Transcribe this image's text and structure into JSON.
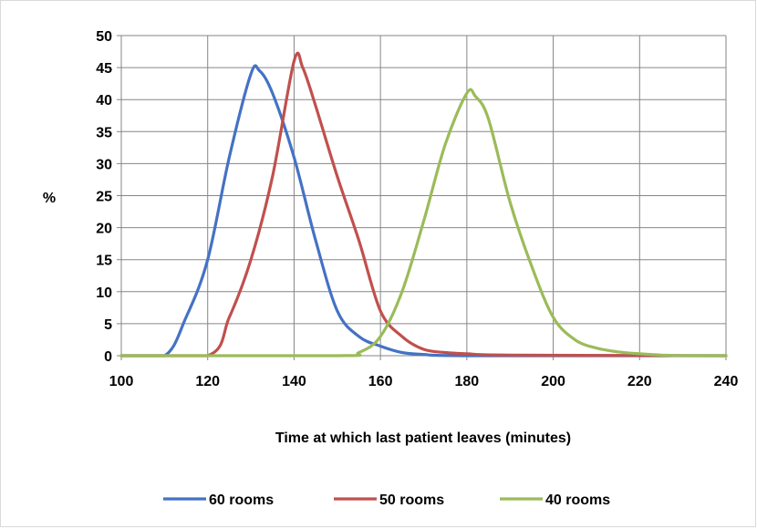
{
  "chart_data": {
    "type": "line",
    "title": "",
    "xlabel": "Time at which last patient leaves (minutes)",
    "ylabel": "%",
    "xlim": [
      100,
      240
    ],
    "ylim": [
      0,
      50
    ],
    "x_ticks": [
      "100",
      "120",
      "140",
      "160",
      "180",
      "200",
      "220",
      "240"
    ],
    "y_ticks": [
      "0",
      "5",
      "10",
      "15",
      "20",
      "25",
      "30",
      "35",
      "40",
      "45",
      "50"
    ],
    "grid": true,
    "legend_position": "bottom",
    "series": [
      {
        "name": "60 rooms",
        "color": "#4472C4",
        "points": [
          [
            100,
            0
          ],
          [
            110,
            0
          ],
          [
            115,
            6
          ],
          [
            120,
            15
          ],
          [
            125,
            31
          ],
          [
            130,
            44
          ],
          [
            132,
            44.5
          ],
          [
            135,
            41
          ],
          [
            140,
            31
          ],
          [
            145,
            18
          ],
          [
            150,
            7
          ],
          [
            155,
            3
          ],
          [
            160,
            1.5
          ],
          [
            165,
            0.5
          ],
          [
            170,
            0.2
          ],
          [
            180,
            0
          ],
          [
            240,
            0
          ]
        ]
      },
      {
        "name": "50 rooms",
        "color": "#C0504D",
        "points": [
          [
            100,
            0
          ],
          [
            120,
            0
          ],
          [
            125,
            6
          ],
          [
            130,
            15
          ],
          [
            135,
            28
          ],
          [
            140,
            46
          ],
          [
            142,
            45
          ],
          [
            145,
            39
          ],
          [
            150,
            28
          ],
          [
            155,
            18
          ],
          [
            160,
            7
          ],
          [
            165,
            3
          ],
          [
            170,
            1
          ],
          [
            175,
            0.5
          ],
          [
            180,
            0.3
          ],
          [
            190,
            0.1
          ],
          [
            240,
            0
          ]
        ]
      },
      {
        "name": "40 rooms",
        "color": "#9BBB59",
        "points": [
          [
            100,
            0
          ],
          [
            150,
            0
          ],
          [
            155,
            0.5
          ],
          [
            160,
            3
          ],
          [
            165,
            10
          ],
          [
            170,
            21
          ],
          [
            175,
            33
          ],
          [
            180,
            41
          ],
          [
            182,
            40.5
          ],
          [
            185,
            37
          ],
          [
            190,
            24
          ],
          [
            195,
            14
          ],
          [
            200,
            6
          ],
          [
            205,
            2.5
          ],
          [
            210,
            1.2
          ],
          [
            215,
            0.6
          ],
          [
            220,
            0.3
          ],
          [
            225,
            0.1
          ],
          [
            230,
            0
          ],
          [
            240,
            0
          ]
        ]
      }
    ]
  }
}
